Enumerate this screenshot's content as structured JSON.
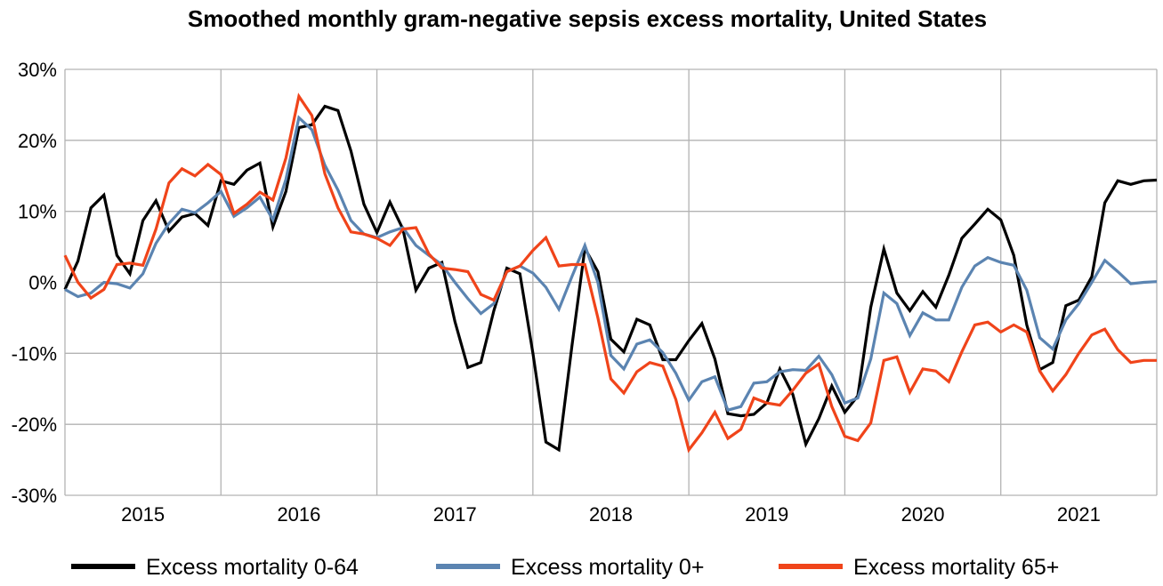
{
  "chart_data": {
    "type": "line",
    "title": "Smoothed monthly gram-negative sepsis excess mortality, United States",
    "xlabel": "",
    "ylabel": "",
    "ylim": [
      -30,
      30
    ],
    "y_ticks": [
      "30%",
      "20%",
      "10%",
      "0%",
      "-10%",
      "-20%",
      "-30%"
    ],
    "y_tick_values": [
      30,
      20,
      10,
      0,
      -10,
      -20,
      -30
    ],
    "x_tick_labels": [
      "2015",
      "2016",
      "2017",
      "2018",
      "2019",
      "2020",
      "2021"
    ],
    "x_unit": "month index from start of 2015",
    "grid": true,
    "legend_position": "bottom",
    "series": [
      {
        "name": "Excess mortality 0-64",
        "color": "#000000",
        "values": [
          -1,
          3,
          10.5,
          12.3,
          3.8,
          1.2,
          8.7,
          11.5,
          7.2,
          9.2,
          9.7,
          8,
          14.3,
          13.8,
          15.8,
          16.8,
          7.8,
          12.8,
          21.8,
          22.2,
          24.8,
          24.2,
          18.5,
          11,
          7,
          11.3,
          7.5,
          -1.1,
          2,
          2.8,
          -5.5,
          -12,
          -11.3,
          -4,
          2,
          1.2,
          -10,
          -22.5,
          -23.6,
          -9,
          4.8,
          1.5,
          -8,
          -9.8,
          -5.2,
          -6,
          -10.9,
          -10.9,
          -8.2,
          -5.8,
          -10.8,
          -18.5,
          -18.8,
          -18.6,
          -17,
          -12.2,
          -15.8,
          -22.8,
          -19.2,
          -14.6,
          -18.3,
          -16,
          -3.5,
          4.7,
          -1.5,
          -4,
          -1.3,
          -3.5,
          1,
          6.2,
          8.2,
          10.3,
          8.8,
          3.8,
          -6,
          -12.3,
          -11.3,
          -3.3,
          -2.5,
          0.8,
          11.2,
          14.3,
          13.8,
          14.3,
          14.4
        ]
      },
      {
        "name": "Excess mortality 0+",
        "color": "#5b84b1",
        "values": [
          -1,
          -2,
          -1.5,
          0,
          -0.2,
          -0.8,
          1.2,
          5.5,
          8.3,
          10.3,
          9.8,
          11.2,
          12.8,
          9.3,
          10.5,
          12,
          8.8,
          14.5,
          23.2,
          21.5,
          16.5,
          13,
          8.7,
          6.8,
          6.3,
          7.1,
          7.7,
          5.2,
          3.8,
          2.5,
          0,
          -2.3,
          -4.4,
          -3,
          1.5,
          2.3,
          1.3,
          -0.7,
          -3.8,
          0.8,
          5.2,
          0,
          -10.3,
          -12.2,
          -8.7,
          -8.1,
          -9.9,
          -12.8,
          -16.6,
          -14,
          -13.3,
          -18,
          -17.5,
          -14.2,
          -14,
          -12.6,
          -12.3,
          -12.4,
          -10.4,
          -13,
          -17,
          -16.3,
          -10.8,
          -1.5,
          -3,
          -7.5,
          -4.3,
          -5.3,
          -5.3,
          -0.7,
          2.3,
          3.5,
          2.8,
          2.4,
          -1.1,
          -7.8,
          -9.4,
          -5.3,
          -3,
          0,
          3.1,
          1.5,
          -0.2,
          0,
          0.1
        ]
      },
      {
        "name": "Excess mortality 65+",
        "color": "#f0441a",
        "values": [
          3.8,
          0,
          -2.2,
          -1,
          2.5,
          2.7,
          2.4,
          7.5,
          14,
          16,
          15,
          16.6,
          15.2,
          9.7,
          11,
          12.7,
          11.6,
          17.5,
          26.2,
          23.5,
          15.3,
          10.5,
          7.1,
          6.8,
          6.2,
          5.2,
          7.5,
          7.7,
          4,
          2,
          1.8,
          1.5,
          -1.7,
          -2.5,
          1.5,
          2.3,
          4.5,
          6.3,
          2.3,
          2.5,
          2.5,
          -5,
          -13.6,
          -15.6,
          -12.6,
          -11.3,
          -11.8,
          -16.5,
          -23.6,
          -21.2,
          -18.3,
          -22,
          -20.7,
          -16.3,
          -17,
          -17.3,
          -15.2,
          -12.8,
          -11.5,
          -17.5,
          -21.7,
          -22.3,
          -19.8,
          -11,
          -10.5,
          -15.5,
          -12.2,
          -12.5,
          -14,
          -9.8,
          -6,
          -5.6,
          -7,
          -6,
          -7,
          -12.5,
          -15.3,
          -13,
          -10,
          -7.4,
          -6.6,
          -9.5,
          -11.3,
          -11,
          -11
        ]
      }
    ]
  }
}
